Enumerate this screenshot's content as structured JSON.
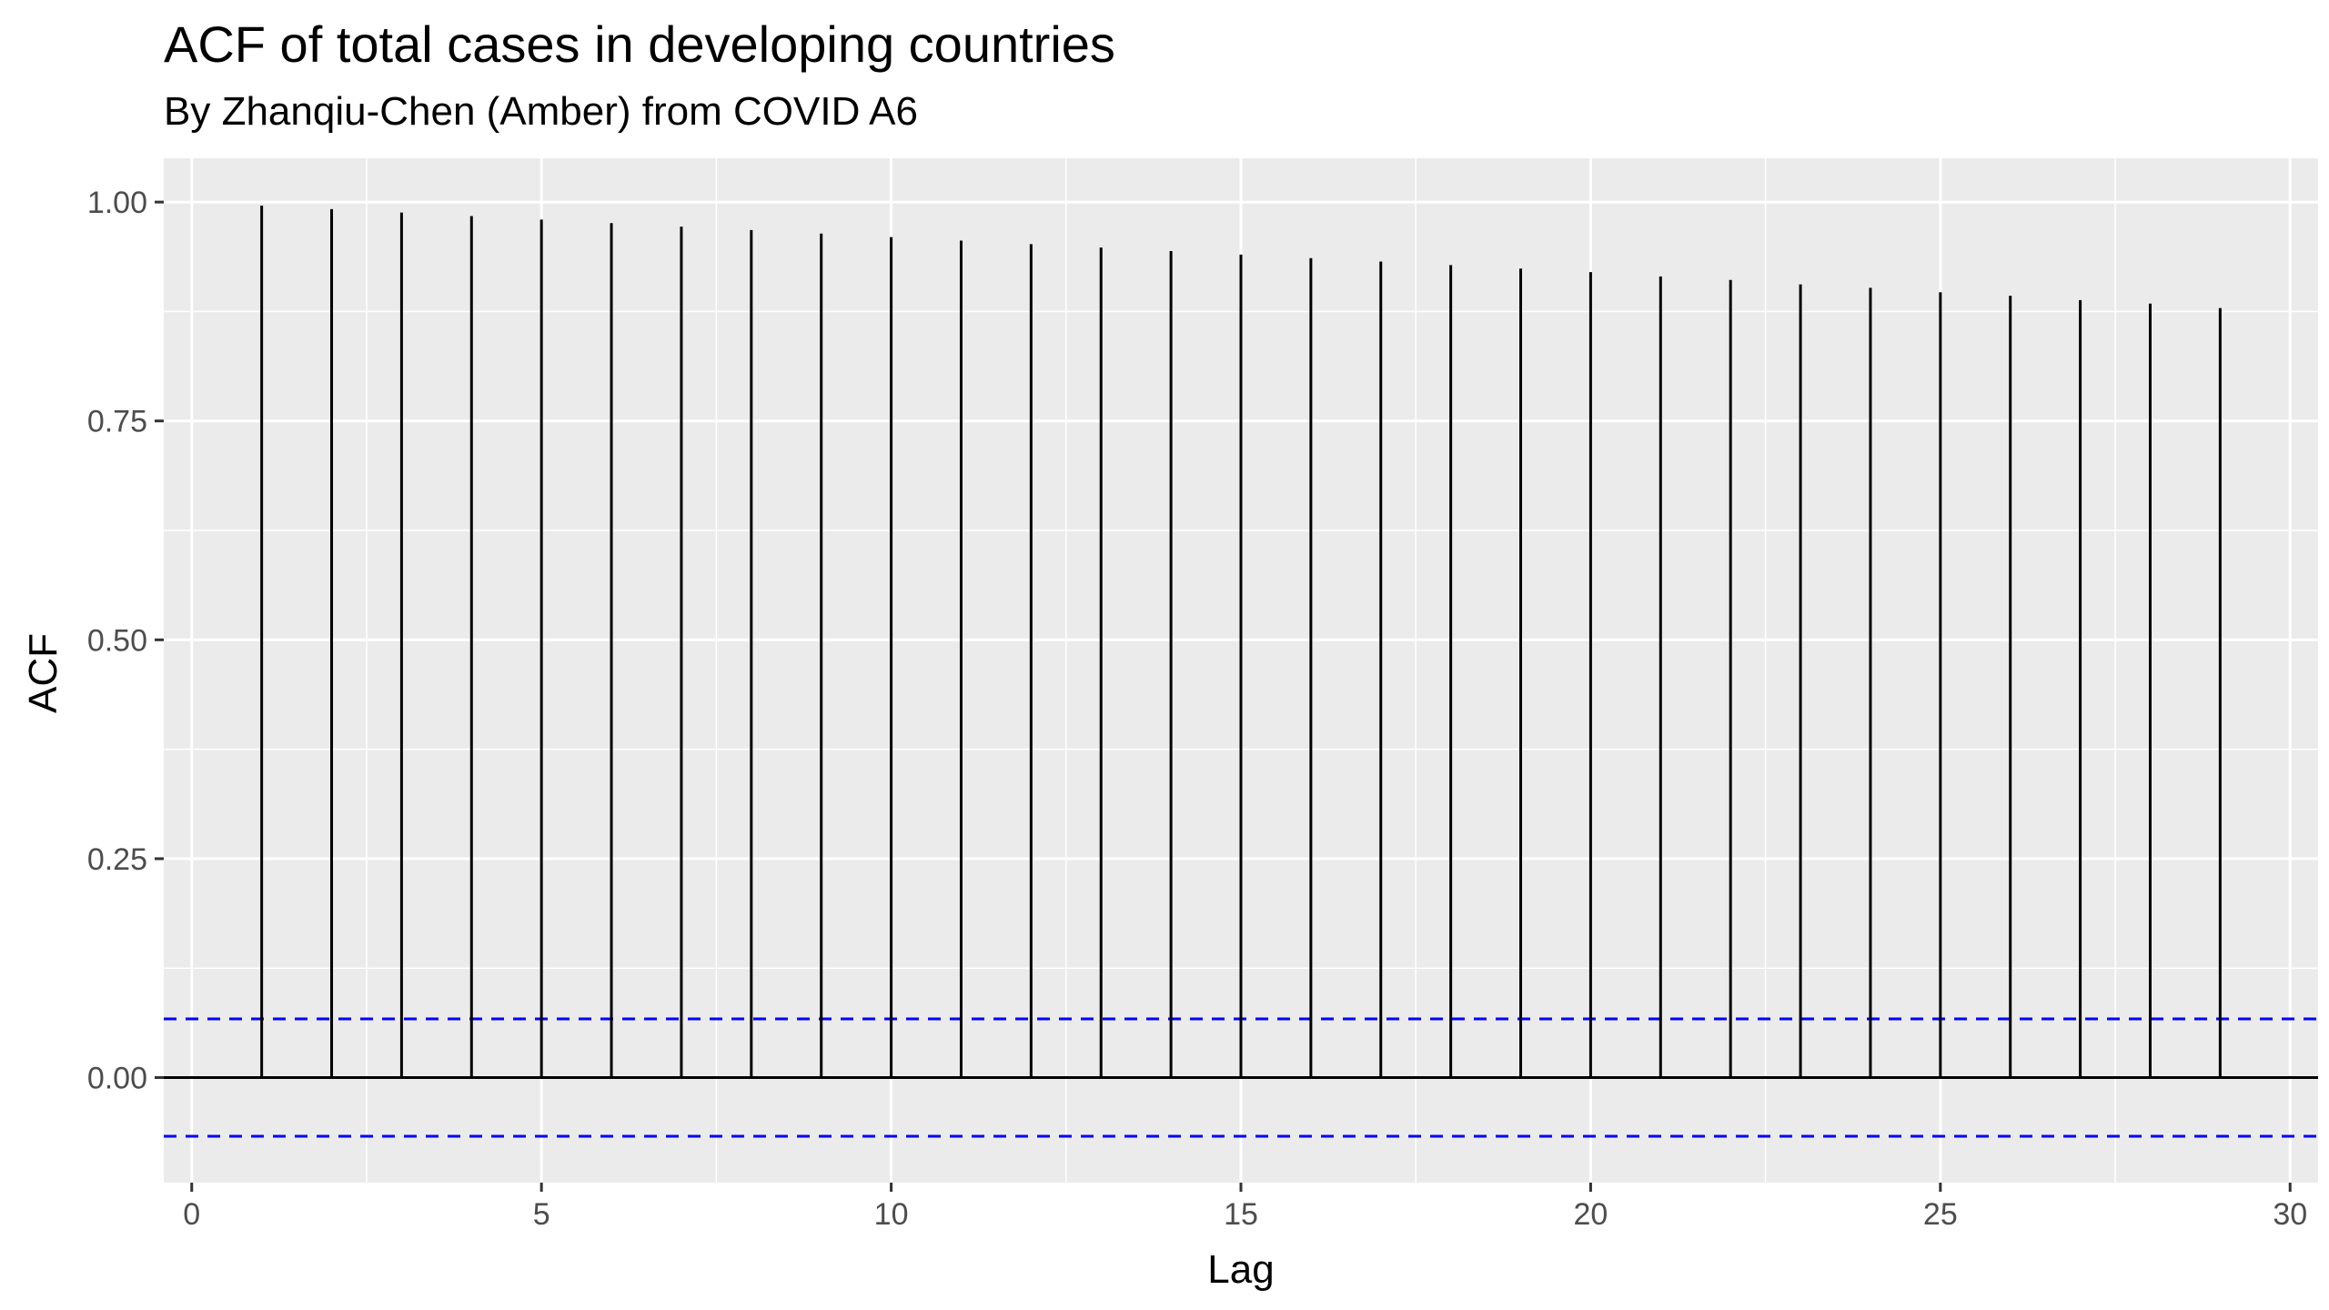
{
  "chart_data": {
    "type": "bar",
    "title": "ACF of total cases in developing countries",
    "subtitle": "By Zhanqiu-Chen (Amber) from COVID A6",
    "xlabel": "Lag",
    "ylabel": "ACF",
    "xlim": [
      -0.4,
      30.4
    ],
    "ylim": [
      -0.12,
      1.05
    ],
    "x_ticks": [
      0,
      5,
      10,
      15,
      20,
      25,
      30
    ],
    "x_tick_labels": [
      "0",
      "5",
      "10",
      "15",
      "20",
      "25",
      "30"
    ],
    "y_ticks": [
      0.0,
      0.25,
      0.5,
      0.75,
      1.0
    ],
    "y_tick_labels": [
      "0.00",
      "0.25",
      "0.50",
      "0.75",
      "1.00"
    ],
    "lags": [
      1,
      2,
      3,
      4,
      5,
      6,
      7,
      8,
      9,
      10,
      11,
      12,
      13,
      14,
      15,
      16,
      17,
      18,
      19,
      20,
      21,
      22,
      23,
      24,
      25,
      26,
      27,
      28,
      29
    ],
    "values": [
      0.996,
      0.992,
      0.988,
      0.984,
      0.98,
      0.976,
      0.972,
      0.968,
      0.964,
      0.96,
      0.956,
      0.952,
      0.948,
      0.944,
      0.94,
      0.936,
      0.932,
      0.928,
      0.924,
      0.92,
      0.915,
      0.911,
      0.906,
      0.902,
      0.897,
      0.893,
      0.888,
      0.884,
      0.879
    ],
    "confidence_bounds": [
      0.067,
      -0.067
    ],
    "colors": {
      "panel_background": "#ebebeb",
      "grid": "#ffffff",
      "bars": "#000000",
      "confidence_lines": "#0000ff"
    },
    "grid": true,
    "legend": "none"
  }
}
